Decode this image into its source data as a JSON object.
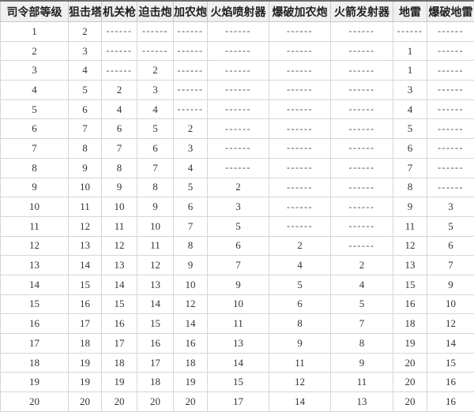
{
  "table": {
    "column_keys": [
      "hq-level",
      "sniper-tower",
      "machine-gun",
      "mortar",
      "cannon",
      "flamethrower",
      "boom-cannon",
      "rocket-launcher",
      "mine",
      "boom-mine"
    ],
    "headers": [
      "司令部等级",
      "狙击塔",
      "机关枪",
      "迫击炮",
      "加农炮",
      "火焰喷射器",
      "爆破加农炮",
      "火箭发射器",
      "地雷",
      "爆破地雷"
    ],
    "empty_marker": "------",
    "rows": [
      [
        "1",
        "2",
        "------",
        "------",
        "------",
        "------",
        "------",
        "------",
        "------",
        "------"
      ],
      [
        "2",
        "3",
        "------",
        "------",
        "------",
        "------",
        "------",
        "------",
        "1",
        "------"
      ],
      [
        "3",
        "4",
        "------",
        "2",
        "------",
        "------",
        "------",
        "------",
        "1",
        "------"
      ],
      [
        "4",
        "5",
        "2",
        "3",
        "------",
        "------",
        "------",
        "------",
        "3",
        "------"
      ],
      [
        "5",
        "6",
        "4",
        "4",
        "------",
        "------",
        "------",
        "------",
        "4",
        "------"
      ],
      [
        "6",
        "7",
        "6",
        "5",
        "2",
        "------",
        "------",
        "------",
        "5",
        "------"
      ],
      [
        "7",
        "8",
        "7",
        "6",
        "3",
        "------",
        "------",
        "------",
        "6",
        "------"
      ],
      [
        "8",
        "9",
        "8",
        "7",
        "4",
        "------",
        "------",
        "------",
        "7",
        "------"
      ],
      [
        "9",
        "10",
        "9",
        "8",
        "5",
        "2",
        "------",
        "------",
        "8",
        "------"
      ],
      [
        "10",
        "11",
        "10",
        "9",
        "6",
        "3",
        "------",
        "------",
        "9",
        "3"
      ],
      [
        "11",
        "12",
        "11",
        "10",
        "7",
        "5",
        "------",
        "------",
        "11",
        "5"
      ],
      [
        "12",
        "13",
        "12",
        "11",
        "8",
        "6",
        "2",
        "------",
        "12",
        "6"
      ],
      [
        "13",
        "14",
        "13",
        "12",
        "9",
        "7",
        "4",
        "2",
        "13",
        "7"
      ],
      [
        "14",
        "15",
        "14",
        "13",
        "10",
        "9",
        "5",
        "4",
        "15",
        "9"
      ],
      [
        "15",
        "16",
        "15",
        "14",
        "12",
        "10",
        "6",
        "5",
        "16",
        "10"
      ],
      [
        "16",
        "17",
        "16",
        "15",
        "14",
        "11",
        "8",
        "7",
        "18",
        "12"
      ],
      [
        "17",
        "18",
        "17",
        "16",
        "16",
        "13",
        "9",
        "8",
        "19",
        "14"
      ],
      [
        "18",
        "19",
        "18",
        "17",
        "18",
        "14",
        "11",
        "9",
        "20",
        "15"
      ],
      [
        "19",
        "19",
        "19",
        "18",
        "19",
        "15",
        "12",
        "11",
        "20",
        "16"
      ],
      [
        "20",
        "20",
        "20",
        "20",
        "20",
        "17",
        "14",
        "13",
        "20",
        "16"
      ]
    ]
  },
  "colors": {
    "header_background": "#f0f0f0",
    "top_border": "#6e6e6e",
    "cell_border": "#d6d6d6",
    "text": "#333333"
  }
}
